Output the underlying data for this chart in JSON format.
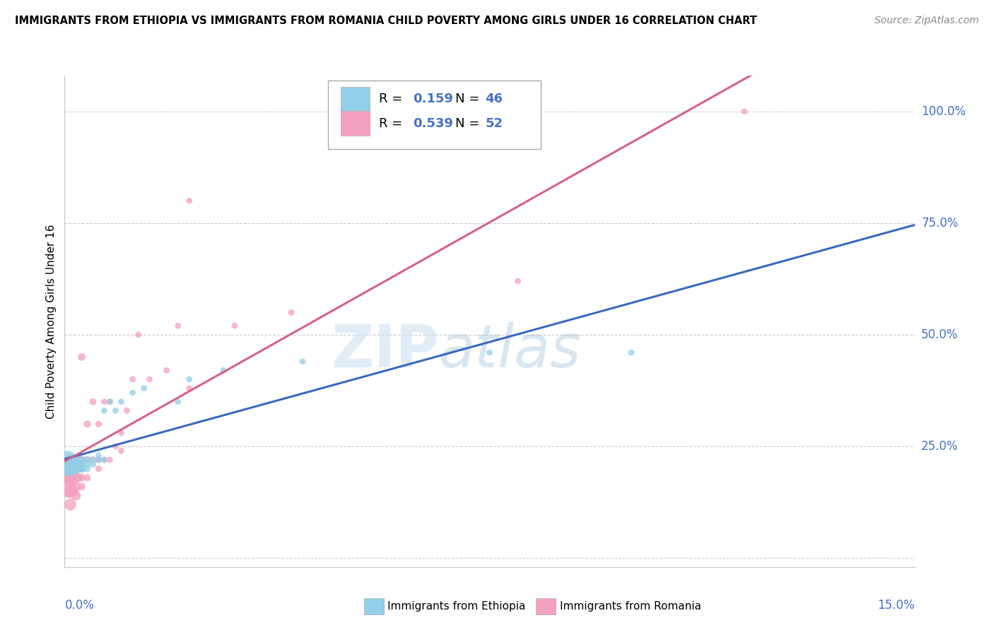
{
  "title": "IMMIGRANTS FROM ETHIOPIA VS IMMIGRANTS FROM ROMANIA CHILD POVERTY AMONG GIRLS UNDER 16 CORRELATION CHART",
  "source": "Source: ZipAtlas.com",
  "ylabel": "Child Poverty Among Girls Under 16",
  "xlim": [
    0.0,
    0.15
  ],
  "ylim": [
    -0.02,
    1.08
  ],
  "ethiopia_R": 0.159,
  "ethiopia_N": 46,
  "romania_R": 0.539,
  "romania_N": 52,
  "ethiopia_color": "#92cfe8",
  "romania_color": "#f4a0c0",
  "ethiopia_line_color": "#3a6abf",
  "romania_line_color": "#d9608a",
  "watermark_zip": "ZIP",
  "watermark_atlas": "atlas",
  "ethiopia_x": [
    0.0005,
    0.0008,
    0.001,
    0.001,
    0.001,
    0.001,
    0.0012,
    0.0013,
    0.0015,
    0.0015,
    0.0018,
    0.002,
    0.002,
    0.002,
    0.002,
    0.002,
    0.0022,
    0.0025,
    0.003,
    0.003,
    0.003,
    0.003,
    0.003,
    0.003,
    0.003,
    0.003,
    0.004,
    0.004,
    0.004,
    0.005,
    0.005,
    0.006,
    0.006,
    0.007,
    0.007,
    0.008,
    0.009,
    0.01,
    0.012,
    0.014,
    0.02,
    0.022,
    0.028,
    0.042,
    0.075,
    0.1
  ],
  "ethiopia_y": [
    0.22,
    0.2,
    0.22,
    0.2,
    0.21,
    0.2,
    0.2,
    0.21,
    0.2,
    0.22,
    0.2,
    0.2,
    0.21,
    0.2,
    0.22,
    0.2,
    0.2,
    0.21,
    0.2,
    0.2,
    0.21,
    0.2,
    0.22,
    0.21,
    0.2,
    0.2,
    0.21,
    0.2,
    0.22,
    0.21,
    0.22,
    0.23,
    0.22,
    0.33,
    0.22,
    0.35,
    0.33,
    0.35,
    0.37,
    0.38,
    0.35,
    0.4,
    0.42,
    0.44,
    0.46,
    0.46
  ],
  "ethiopia_sizes": [
    350,
    250,
    150,
    150,
    150,
    150,
    120,
    120,
    100,
    100,
    80,
    80,
    80,
    80,
    80,
    80,
    70,
    70,
    60,
    60,
    60,
    60,
    60,
    60,
    60,
    60,
    50,
    50,
    50,
    45,
    45,
    40,
    40,
    40,
    40,
    40,
    40,
    40,
    40,
    40,
    40,
    40,
    40,
    40,
    40,
    40
  ],
  "romania_x": [
    0.0004,
    0.0006,
    0.0008,
    0.001,
    0.001,
    0.001,
    0.001,
    0.001,
    0.001,
    0.0012,
    0.0015,
    0.0015,
    0.002,
    0.002,
    0.002,
    0.002,
    0.002,
    0.0022,
    0.0025,
    0.003,
    0.003,
    0.003,
    0.003,
    0.003,
    0.003,
    0.004,
    0.004,
    0.004,
    0.005,
    0.005,
    0.006,
    0.006,
    0.006,
    0.007,
    0.007,
    0.008,
    0.008,
    0.009,
    0.01,
    0.01,
    0.011,
    0.012,
    0.013,
    0.015,
    0.018,
    0.02,
    0.022,
    0.022,
    0.03,
    0.04,
    0.08,
    0.12
  ],
  "romania_y": [
    0.2,
    0.18,
    0.15,
    0.2,
    0.18,
    0.22,
    0.17,
    0.15,
    0.12,
    0.18,
    0.2,
    0.15,
    0.2,
    0.18,
    0.22,
    0.16,
    0.14,
    0.2,
    0.18,
    0.45,
    0.22,
    0.2,
    0.18,
    0.22,
    0.16,
    0.3,
    0.22,
    0.18,
    0.35,
    0.22,
    0.3,
    0.22,
    0.2,
    0.35,
    0.22,
    0.35,
    0.22,
    0.25,
    0.28,
    0.24,
    0.33,
    0.4,
    0.5,
    0.4,
    0.42,
    0.52,
    0.38,
    0.8,
    0.52,
    0.55,
    0.62,
    1.0
  ],
  "romania_sizes": [
    200,
    200,
    200,
    150,
    150,
    150,
    150,
    150,
    150,
    120,
    120,
    120,
    100,
    100,
    100,
    100,
    100,
    80,
    80,
    60,
    60,
    60,
    60,
    60,
    60,
    55,
    55,
    55,
    50,
    50,
    45,
    45,
    45,
    40,
    40,
    40,
    40,
    40,
    40,
    40,
    40,
    40,
    40,
    40,
    40,
    40,
    40,
    40,
    40,
    40,
    40,
    40
  ]
}
